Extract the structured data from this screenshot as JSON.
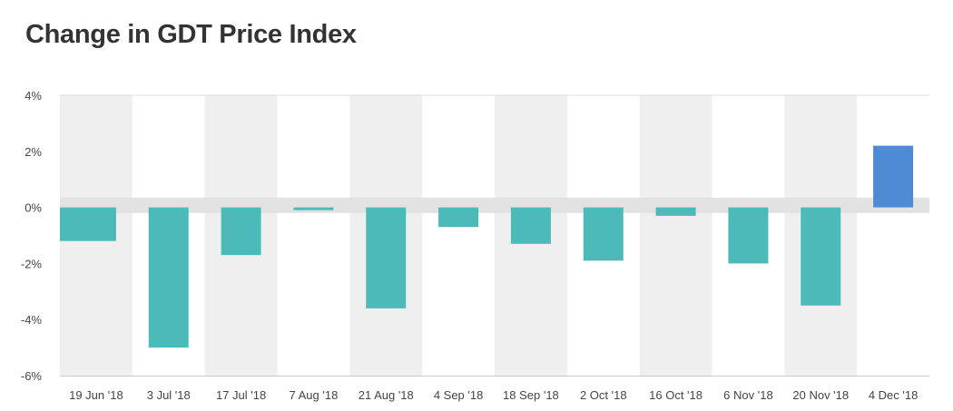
{
  "chart_data": {
    "type": "bar",
    "title": "Change in GDT Price Index",
    "xlabel": "",
    "ylabel": "",
    "categories": [
      "19 Jun '18",
      "3 Jul '18",
      "17 Jul '18",
      "7 Aug '18",
      "21 Aug '18",
      "4 Sep '18",
      "18 Sep '18",
      "2 Oct '18",
      "16 Oct '18",
      "6 Nov '18",
      "20 Nov '18",
      "4 Dec '18"
    ],
    "values": [
      -1.2,
      -5.0,
      -1.7,
      -0.1,
      -3.6,
      -0.7,
      -1.3,
      -1.9,
      -0.3,
      -2.0,
      -3.5,
      2.2
    ],
    "ylim": [
      -6,
      4
    ],
    "y_ticks": [
      4,
      2,
      0,
      -2,
      -4,
      -6
    ],
    "y_tick_labels": [
      "4%",
      "2%",
      "0%",
      "-2%",
      "-4%",
      "-6%"
    ],
    "grid": true,
    "colors": {
      "negative": "#4dbaba",
      "positive": "#4f8ad4",
      "band": "#efefef",
      "zero_band": "#e2e2e2",
      "axis": "#cccccc"
    }
  }
}
